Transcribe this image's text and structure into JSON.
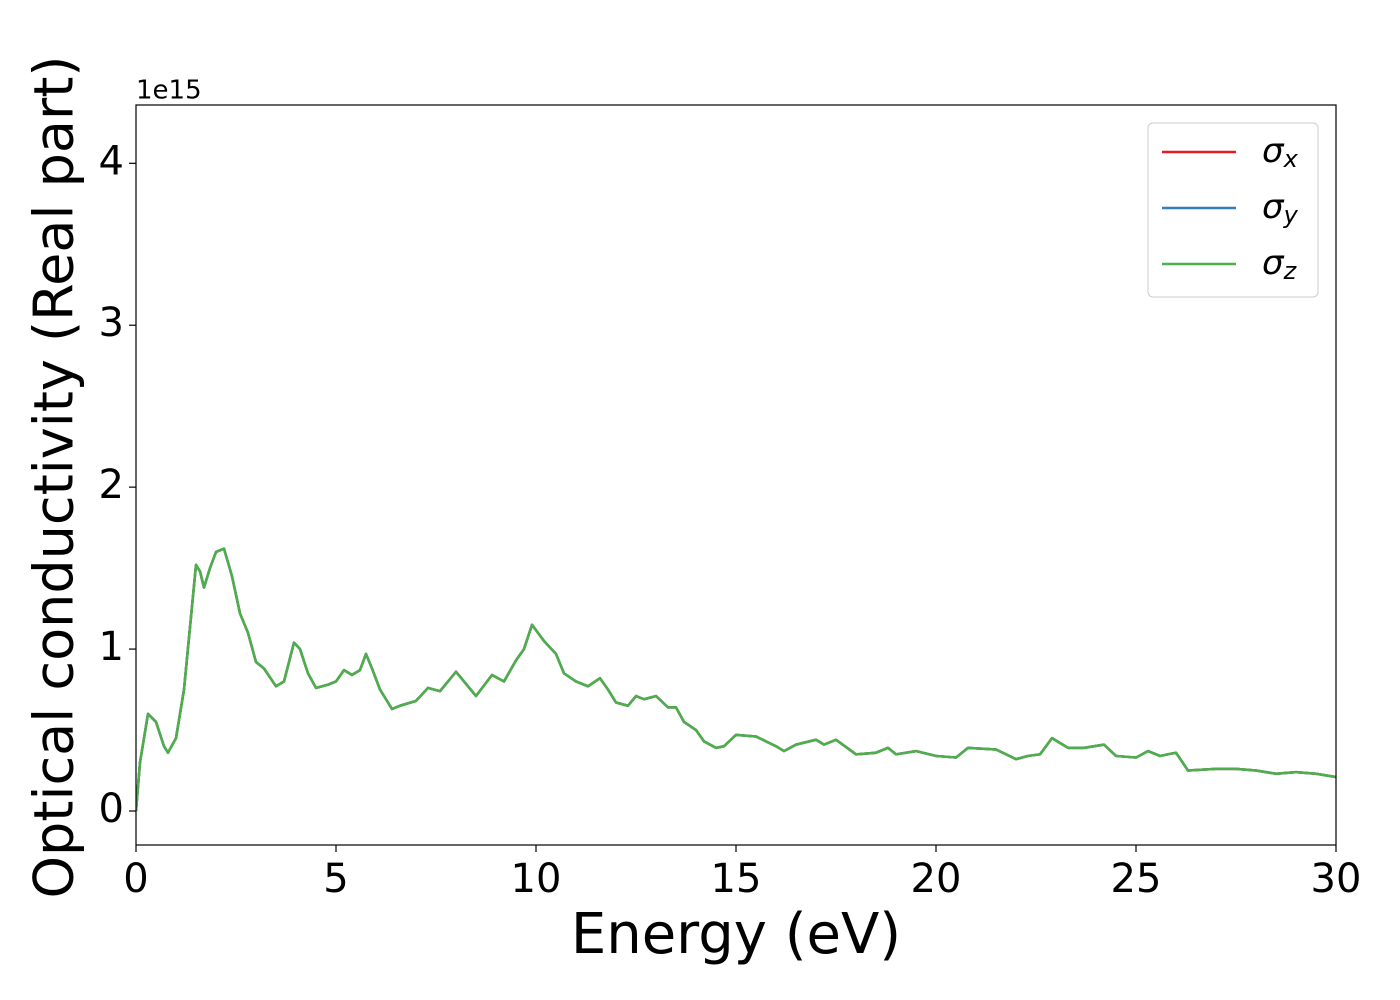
{
  "chart_data": {
    "type": "line",
    "xlabel": "Energy (eV)",
    "ylabel": "Optical conductivity (Real part)",
    "y_offset_label": "1e15",
    "x": [
      0,
      0.1,
      0.3,
      0.5,
      0.7,
      0.8,
      1.0,
      1.2,
      1.5,
      1.6,
      1.7,
      1.85,
      2.0,
      2.2,
      2.4,
      2.6,
      2.8,
      3.0,
      3.2,
      3.5,
      3.7,
      3.95,
      4.1,
      4.3,
      4.5,
      4.8,
      5.0,
      5.2,
      5.4,
      5.6,
      5.75,
      5.9,
      6.1,
      6.4,
      6.6,
      7.0,
      7.3,
      7.6,
      8.0,
      8.2,
      8.5,
      8.9,
      9.2,
      9.5,
      9.7,
      9.9,
      10.2,
      10.5,
      10.7,
      11.0,
      11.3,
      11.6,
      11.8,
      12.0,
      12.3,
      12.5,
      12.7,
      13.0,
      13.3,
      13.5,
      13.7,
      14.0,
      14.2,
      14.5,
      14.7,
      15.0,
      15.5,
      16.0,
      16.2,
      16.5,
      17.0,
      17.2,
      17.5,
      18.0,
      18.5,
      18.8,
      19.0,
      19.5,
      20.0,
      20.5,
      20.8,
      21.5,
      22.0,
      22.3,
      22.6,
      22.9,
      23.3,
      23.7,
      24.2,
      24.5,
      25.0,
      25.3,
      25.6,
      26.0,
      26.3,
      27.0,
      27.5,
      28.0,
      28.5,
      29.0,
      29.5,
      30.0
    ],
    "series": [
      {
        "name": "σx",
        "color": "#e41a1c",
        "values": [
          0.0,
          0.3,
          0.6,
          0.55,
          0.4,
          0.36,
          0.45,
          0.75,
          1.52,
          1.48,
          1.38,
          1.5,
          1.6,
          1.62,
          1.45,
          1.22,
          1.1,
          0.92,
          0.88,
          0.77,
          0.8,
          1.04,
          1.0,
          0.85,
          0.76,
          0.78,
          0.8,
          0.87,
          0.84,
          0.87,
          0.97,
          0.88,
          0.75,
          0.63,
          0.65,
          0.68,
          0.76,
          0.74,
          0.86,
          0.8,
          0.71,
          0.84,
          0.8,
          0.93,
          1.0,
          1.15,
          1.05,
          0.97,
          0.85,
          0.8,
          0.77,
          0.82,
          0.75,
          0.67,
          0.65,
          0.71,
          0.69,
          0.71,
          0.64,
          0.64,
          0.55,
          0.5,
          0.43,
          0.39,
          0.4,
          0.47,
          0.46,
          0.4,
          0.37,
          0.41,
          0.44,
          0.41,
          0.44,
          0.35,
          0.36,
          0.39,
          0.35,
          0.37,
          0.34,
          0.33,
          0.39,
          0.38,
          0.32,
          0.34,
          0.35,
          0.45,
          0.39,
          0.39,
          0.41,
          0.34,
          0.33,
          0.37,
          0.34,
          0.36,
          0.25,
          0.26,
          0.26,
          0.25,
          0.23,
          0.24,
          0.23,
          0.21
        ]
      },
      {
        "name": "σy",
        "color": "#377eb8",
        "values": [
          0.0,
          0.3,
          0.6,
          0.55,
          0.4,
          0.36,
          0.45,
          0.75,
          1.52,
          1.48,
          1.38,
          1.5,
          1.6,
          1.62,
          1.45,
          1.22,
          1.1,
          0.92,
          0.88,
          0.77,
          0.8,
          1.04,
          1.0,
          0.85,
          0.76,
          0.78,
          0.8,
          0.87,
          0.84,
          0.87,
          0.97,
          0.88,
          0.75,
          0.63,
          0.65,
          0.68,
          0.76,
          0.74,
          0.86,
          0.8,
          0.71,
          0.84,
          0.8,
          0.93,
          1.0,
          1.15,
          1.05,
          0.97,
          0.85,
          0.8,
          0.77,
          0.82,
          0.75,
          0.67,
          0.65,
          0.71,
          0.69,
          0.71,
          0.64,
          0.64,
          0.55,
          0.5,
          0.43,
          0.39,
          0.4,
          0.47,
          0.46,
          0.4,
          0.37,
          0.41,
          0.44,
          0.41,
          0.44,
          0.35,
          0.36,
          0.39,
          0.35,
          0.37,
          0.34,
          0.33,
          0.39,
          0.38,
          0.32,
          0.34,
          0.35,
          0.45,
          0.39,
          0.39,
          0.41,
          0.34,
          0.33,
          0.37,
          0.34,
          0.36,
          0.25,
          0.26,
          0.26,
          0.25,
          0.23,
          0.24,
          0.23,
          0.21
        ]
      },
      {
        "name": "σz",
        "color": "#4daf4a",
        "values": [
          0.0,
          0.3,
          0.6,
          0.55,
          0.4,
          0.36,
          0.45,
          0.75,
          1.52,
          1.48,
          1.38,
          1.5,
          1.6,
          1.62,
          1.45,
          1.22,
          1.1,
          0.92,
          0.88,
          0.77,
          0.8,
          1.04,
          1.0,
          0.85,
          0.76,
          0.78,
          0.8,
          0.87,
          0.84,
          0.87,
          0.97,
          0.88,
          0.75,
          0.63,
          0.65,
          0.68,
          0.76,
          0.74,
          0.86,
          0.8,
          0.71,
          0.84,
          0.8,
          0.93,
          1.0,
          1.15,
          1.05,
          0.97,
          0.85,
          0.8,
          0.77,
          0.82,
          0.75,
          0.67,
          0.65,
          0.71,
          0.69,
          0.71,
          0.64,
          0.64,
          0.55,
          0.5,
          0.43,
          0.39,
          0.4,
          0.47,
          0.46,
          0.4,
          0.37,
          0.41,
          0.44,
          0.41,
          0.44,
          0.35,
          0.36,
          0.39,
          0.35,
          0.37,
          0.34,
          0.33,
          0.39,
          0.38,
          0.32,
          0.34,
          0.35,
          0.45,
          0.39,
          0.39,
          0.41,
          0.34,
          0.33,
          0.37,
          0.34,
          0.36,
          0.25,
          0.26,
          0.26,
          0.25,
          0.23,
          0.24,
          0.23,
          0.21
        ]
      }
    ],
    "xlim": [
      0,
      30
    ],
    "xticks": [
      0,
      5,
      10,
      15,
      20,
      25,
      30
    ],
    "ylim": [
      -0.21,
      4.36
    ],
    "yticks": [
      0,
      1,
      2,
      3,
      4
    ],
    "grid": false,
    "legend": "upper right"
  }
}
